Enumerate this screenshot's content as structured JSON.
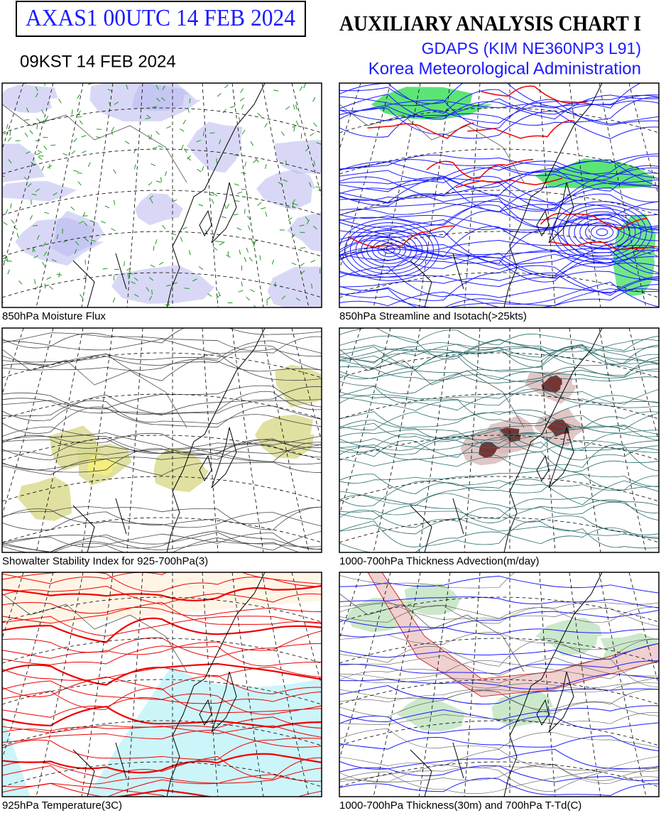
{
  "header": {
    "product_id": "AXAS1  00UTC 14 FEB 2024",
    "kst_time": "09KST 14 FEB 2024",
    "title": "AUXILIARY ANALYSIS CHART  I",
    "model": "GDAPS (KIM NE360NP3 L91)",
    "agency": "Korea Meteorological Administration"
  },
  "panels": [
    {
      "caption": "850hPa Moisture Flux"
    },
    {
      "caption": "850hPa Streamline and Isotach(>25kts)"
    },
    {
      "caption": "Showalter Stability Index for 925-700hPa(3)"
    },
    {
      "caption": "1000-700hPa Thickness Advection(m/day)"
    },
    {
      "caption": "925hPa Temperature(3C)"
    },
    {
      "caption": "1000-700hPa Thickness(30m) and 700hPa T-Td(C)"
    }
  ]
}
